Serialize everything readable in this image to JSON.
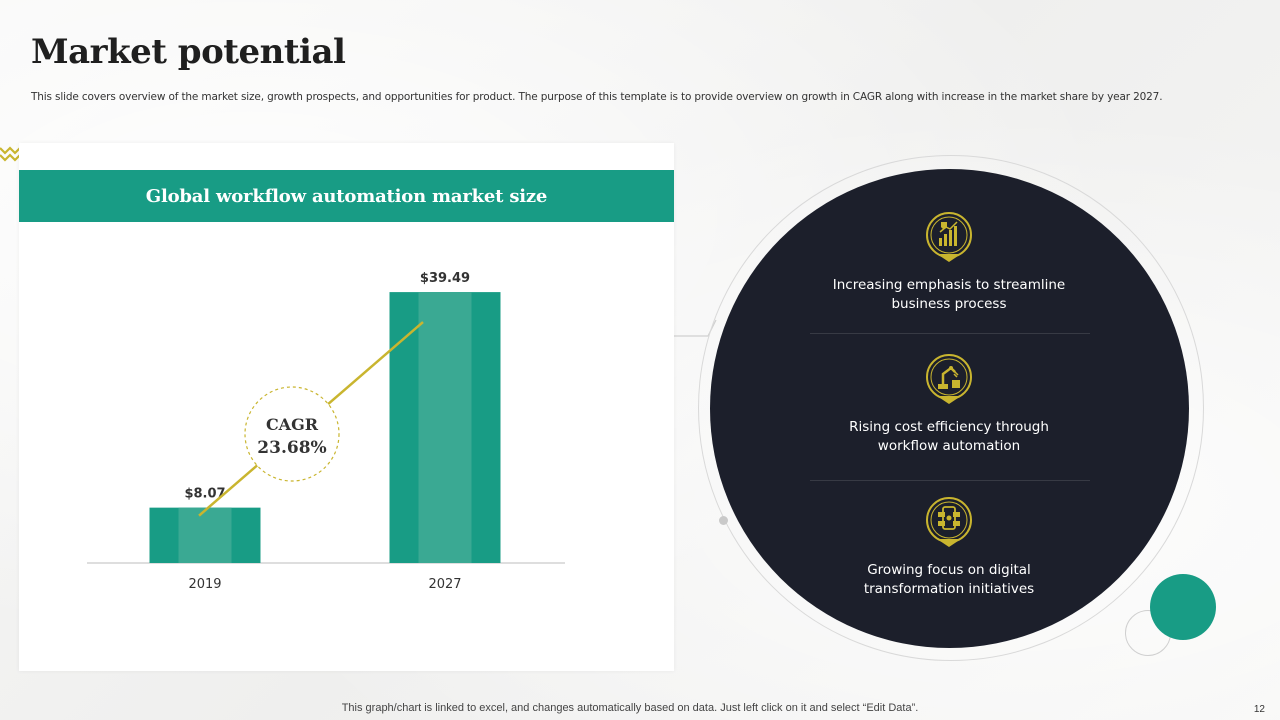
{
  "slide": {
    "title": "Market potential",
    "subtitle": "This slide covers overview of the market size, growth prospects, and opportunities for product. The  purpose of this template  is to provide overview  on growth  in CAGR  along with increase in the market share by year 2027.",
    "footer_note": "This graph/chart is linked to excel,  and changes automatically based on data. Just left click on it and select “Edit Data”.",
    "page_number": "12"
  },
  "chart_data": {
    "type": "bar",
    "title": "Global workflow automation market size",
    "categories": [
      "2019",
      "2027"
    ],
    "values": [
      8.07,
      39.49
    ],
    "value_labels": [
      "$8.07",
      "$39.49"
    ],
    "xlabel": "",
    "ylabel": "",
    "ylim": [
      0,
      40
    ],
    "grid": false,
    "legend": "none",
    "annotation": {
      "label": "CAGR",
      "value": "23.68%"
    }
  },
  "features": [
    {
      "icon": "growth-chart-shield-icon",
      "text_line1": "Increasing emphasis to streamline",
      "text_line2": "business process"
    },
    {
      "icon": "robotic-arm-icon",
      "text_line1": "Rising cost efficiency through",
      "text_line2": "workflow  automation"
    },
    {
      "icon": "digital-network-icon",
      "text_line1": "Growing  focus on digital",
      "text_line2": "transformation initiatives"
    }
  ],
  "colors": {
    "teal": "#189c85",
    "teal_light": "#3aa993",
    "gold": "#c9b52f",
    "dark_navy": "#1c1f2b"
  }
}
